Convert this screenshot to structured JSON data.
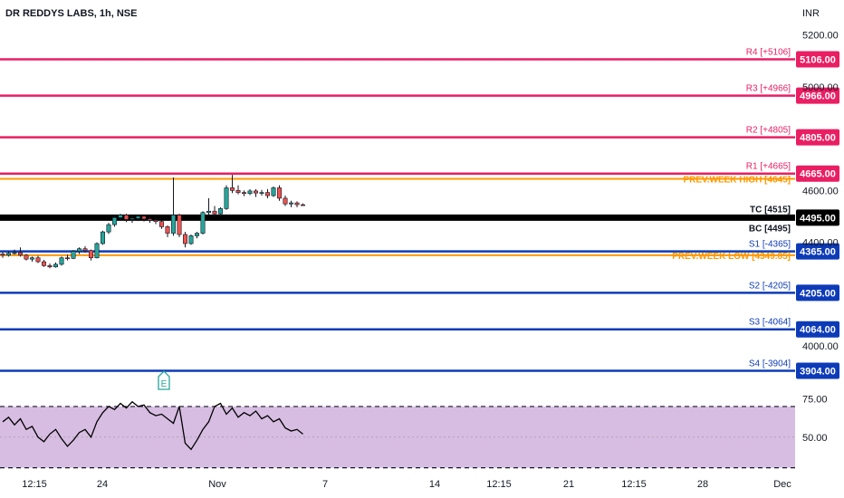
{
  "header": {
    "title": "DR REDDYS LABS, 1h, NSE",
    "currency": "INR"
  },
  "colors": {
    "resistance": "#e91e63",
    "support": "#0d3bb8",
    "prev_week": "#ff9800",
    "pivot": "#000000",
    "candle_up": "#26a69a",
    "candle_down": "#ef5350",
    "rsi_line": "#000000",
    "rsi_band": "#d7bde2"
  },
  "chart_data": [
    {
      "type": "candlestick",
      "title": "DR REDDYS LABS, 1h, NSE",
      "ylim": [
        3850,
        5230
      ],
      "y_ticks": [
        "5200.00",
        "5000.00",
        "4600.00",
        "4400.00",
        "4000.00"
      ],
      "x_ticks": [
        "12:15",
        "24",
        "Nov",
        "7",
        "14",
        "12:15",
        "21",
        "12:15",
        "28",
        "Dec"
      ],
      "levels": [
        {
          "label": "R4 [+5106]",
          "value": 5106,
          "tag": "5106.00",
          "kind": "resistance"
        },
        {
          "label": "R3 [+4966]",
          "value": 4966,
          "tag": "4966.00",
          "kind": "resistance"
        },
        {
          "label": "R2 [+4805]",
          "value": 4805,
          "tag": "4805.00",
          "kind": "resistance"
        },
        {
          "label": "R1 [+4665]",
          "value": 4665,
          "tag": "4665.00",
          "kind": "resistance"
        },
        {
          "label": "PREV.WEEK HIGH [4645]",
          "value": 4645,
          "tag": "",
          "kind": "prev_week"
        },
        {
          "label": "TC [4515]",
          "value": 4515,
          "tag": "",
          "kind": "pivot_label"
        },
        {
          "label": "BC [4495]",
          "value": 4495,
          "tag": "4495.00",
          "kind": "pivot"
        },
        {
          "label": "S1 [-4365]",
          "value": 4365,
          "tag": "4365.00",
          "kind": "support"
        },
        {
          "label": "PREV.WEEK LOW [4349.85]",
          "value": 4349.85,
          "tag": "",
          "kind": "prev_week"
        },
        {
          "label": "S2 [-4205]",
          "value": 4205,
          "tag": "4205.00",
          "kind": "support"
        },
        {
          "label": "S3 [-4064]",
          "value": 4064,
          "tag": "4064.00",
          "kind": "support"
        },
        {
          "label": "S4 [-3904]",
          "value": 3904,
          "tag": "3904.00",
          "kind": "support"
        }
      ],
      "candles": [
        [
          4355,
          4362,
          4340,
          4350
        ],
        [
          4350,
          4365,
          4345,
          4358
        ],
        [
          4358,
          4372,
          4352,
          4360
        ],
        [
          4360,
          4380,
          4345,
          4350
        ],
        [
          4350,
          4355,
          4330,
          4335
        ],
        [
          4335,
          4345,
          4325,
          4340
        ],
        [
          4340,
          4348,
          4320,
          4325
        ],
        [
          4325,
          4332,
          4305,
          4310
        ],
        [
          4310,
          4318,
          4300,
          4305
        ],
        [
          4305,
          4322,
          4302,
          4315
        ],
        [
          4315,
          4345,
          4310,
          4340
        ],
        [
          4340,
          4352,
          4330,
          4338
        ],
        [
          4338,
          4370,
          4335,
          4365
        ],
        [
          4365,
          4380,
          4355,
          4375
        ],
        [
          4375,
          4385,
          4360,
          4368
        ],
        [
          4368,
          4372,
          4330,
          4340
        ],
        [
          4340,
          4400,
          4338,
          4395
        ],
        [
          4395,
          4445,
          4390,
          4440
        ],
        [
          4440,
          4475,
          4432,
          4468
        ],
        [
          4468,
          4500,
          4460,
          4495
        ],
        [
          4495,
          4510,
          4485,
          4505
        ],
        [
          4505,
          4510,
          4478,
          4488
        ],
        [
          4488,
          4500,
          4475,
          4492
        ],
        [
          4492,
          4505,
          4482,
          4500
        ],
        [
          4500,
          4505,
          4480,
          4490
        ],
        [
          4490,
          4500,
          4475,
          4485
        ],
        [
          4485,
          4495,
          4470,
          4480
        ],
        [
          4480,
          4485,
          4452,
          4460
        ],
        [
          4460,
          4465,
          4420,
          4435
        ],
        [
          4435,
          4650,
          4425,
          4505
        ],
        [
          4505,
          4510,
          4420,
          4430
        ],
        [
          4430,
          4440,
          4380,
          4395
        ],
        [
          4395,
          4430,
          4390,
          4425
        ],
        [
          4425,
          4440,
          4415,
          4435
        ],
        [
          4435,
          4520,
          4430,
          4515
        ],
        [
          4515,
          4570,
          4505,
          4520
        ],
        [
          4520,
          4540,
          4500,
          4510
        ],
        [
          4510,
          4535,
          4500,
          4530
        ],
        [
          4530,
          4620,
          4525,
          4610
        ],
        [
          4610,
          4660,
          4590,
          4600
        ],
        [
          4600,
          4620,
          4585,
          4592
        ],
        [
          4592,
          4600,
          4578,
          4588
        ],
        [
          4588,
          4605,
          4582,
          4598
        ],
        [
          4598,
          4605,
          4575,
          4590
        ],
        [
          4590,
          4602,
          4580,
          4592
        ],
        [
          4592,
          4605,
          4570,
          4580
        ],
        [
          4580,
          4615,
          4575,
          4610
        ],
        [
          4610,
          4620,
          4560,
          4570
        ],
        [
          4570,
          4580,
          4540,
          4548
        ],
        [
          4548,
          4560,
          4535,
          4552
        ],
        [
          4552,
          4558,
          4535,
          4545
        ],
        [
          4545,
          4550,
          4540,
          4542
        ]
      ],
      "rsi": {
        "ylim": [
          28,
          80
        ],
        "y_ticks": [
          "75.00",
          "50.00"
        ],
        "bands": [
          70,
          30
        ],
        "midline": 50,
        "values": [
          60,
          63,
          58,
          62,
          55,
          57,
          50,
          47,
          52,
          55,
          49,
          44,
          48,
          53,
          55,
          50,
          60,
          66,
          70,
          68,
          72,
          69,
          73,
          70,
          71,
          66,
          64,
          65,
          62,
          59,
          70,
          46,
          42,
          48,
          55,
          60,
          70,
          72,
          65,
          69,
          63,
          66,
          64,
          67,
          62,
          64,
          60,
          62,
          56,
          54,
          55,
          52
        ]
      },
      "annotation": "E"
    }
  ]
}
